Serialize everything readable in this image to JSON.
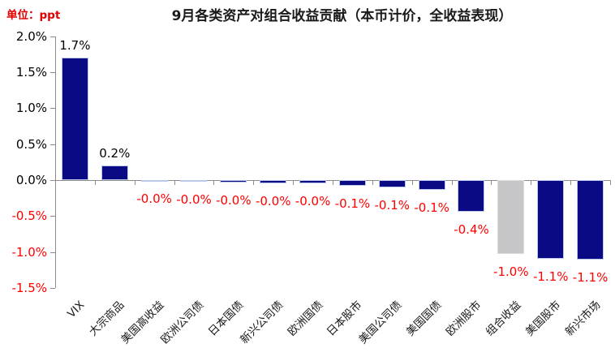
{
  "chart_data": {
    "type": "bar",
    "title": "9月各类资产对组合收益贡献（本币计价，全收益表现）",
    "unit_label": "单位：ppt",
    "categories": [
      "VIX",
      "大宗商品",
      "美国高收益",
      "欧洲公司债",
      "日本国债",
      "新兴公司债",
      "欧洲国债",
      "日本股市",
      "美国公司债",
      "美国国债",
      "欧洲股市",
      "组合收益",
      "美国股市",
      "新兴市场"
    ],
    "values": [
      1.7,
      0.2,
      -0.01,
      -0.02,
      -0.03,
      -0.04,
      -0.045,
      -0.08,
      -0.1,
      -0.13,
      -0.44,
      -1.03,
      -1.09,
      -1.11
    ],
    "value_labels": [
      "1.7%",
      "0.2%",
      "-0.0%",
      "-0.0%",
      "-0.0%",
      "-0.0%",
      "-0.0%",
      "-0.1%",
      "-0.1%",
      "-0.1%",
      "-0.4%",
      "-1.0%",
      "-1.1%",
      "-1.1%"
    ],
    "bar_roles": [
      "normal",
      "normal",
      "normal",
      "normal",
      "normal",
      "normal",
      "normal",
      "normal",
      "normal",
      "normal",
      "normal",
      "highlight",
      "normal",
      "normal"
    ],
    "yticks": [
      {
        "label": "2.0%",
        "value": 2.0
      },
      {
        "label": "1.5%",
        "value": 1.5
      },
      {
        "label": "1.0%",
        "value": 1.0
      },
      {
        "label": "0.5%",
        "value": 0.5
      },
      {
        "label": "0.0%",
        "value": 0.0
      },
      {
        "label": "-0.5%",
        "value": -0.5
      },
      {
        "label": "-1.0%",
        "value": -1.0
      },
      {
        "label": "-1.5%",
        "value": -1.5
      }
    ],
    "ylim": [
      -1.5,
      2.0
    ],
    "grid": false,
    "legend": false,
    "colors": {
      "bar_normal": "#0a0a84",
      "bar_normal_border": "#bcc8e8",
      "bar_highlight": "#c6c6c9",
      "bar_highlight_border": "#dcdcdc",
      "positive_label": "#000000",
      "negative_label": "#fe0000",
      "axis": "#8c8c8c",
      "title": "#1a1a1a",
      "unit_label": "#e00000",
      "tick_label_positive": "#000000",
      "tick_label_negative": "#fe0000",
      "category_label": "#1a1a1a"
    }
  }
}
